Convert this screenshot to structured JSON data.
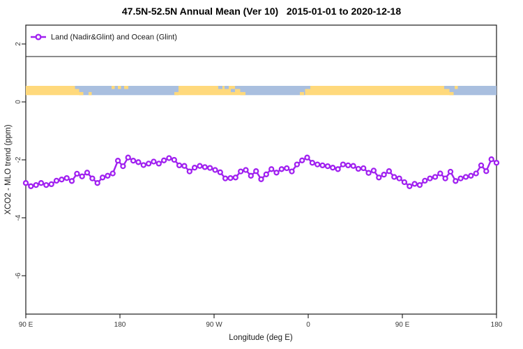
{
  "title": "47.5N-52.5N Annual Mean (Ver 10)   2015-01-01 to 2020-12-18",
  "legend": {
    "label": "Land (Nadir&Glint) and Ocean (Glint)",
    "marker": "open-circle-on-line",
    "position": "top-left-full-width-box"
  },
  "axes": {
    "x_label": "Longitude (deg E)",
    "y_label": "XCO2 - MLO trend (ppm)",
    "x_ticks": [
      "90 E",
      "180",
      "90 W",
      "0",
      "90 E",
      "180"
    ],
    "y_ticks": [
      "2",
      "0",
      "-2",
      "-4",
      "-6"
    ]
  },
  "colors": {
    "line": "#A020F0",
    "marker_fill": "#ffffff",
    "land": "#FFD97C",
    "ocean": "#A9BFDF",
    "frame": "#1a1a1a",
    "background": "#ffffff"
  },
  "map_strip": {
    "note": "land/ocean mask band drawn across the plot at about +0.2 to +0.55 ppm",
    "segments": [
      {
        "from": 90,
        "to": 141,
        "surface": "land"
      },
      {
        "from": 141,
        "to": 236,
        "surface": "ocean"
      },
      {
        "from": 236,
        "to": 295,
        "surface": "land"
      },
      {
        "from": 295,
        "to": 357,
        "surface": "ocean"
      },
      {
        "from": 357,
        "to": 495,
        "surface": "land"
      },
      {
        "from": 495,
        "to": 540,
        "surface": "ocean"
      }
    ],
    "details": [
      {
        "from": 137,
        "to": 141,
        "edge": "top",
        "surface": "ocean"
      },
      {
        "from": 141,
        "to": 145,
        "edge": "bottom",
        "surface": "land"
      },
      {
        "from": 150,
        "to": 153,
        "edge": "bottom",
        "surface": "land"
      },
      {
        "from": 172,
        "to": 175,
        "edge": "top",
        "surface": "land"
      },
      {
        "from": 178,
        "to": 181,
        "edge": "top",
        "surface": "land"
      },
      {
        "from": 184,
        "to": 188,
        "edge": "top",
        "surface": "land"
      },
      {
        "from": 231,
        "to": 236,
        "edge": "top",
        "surface": "ocean"
      },
      {
        "from": 232,
        "to": 236,
        "edge": "bottom",
        "surface": "land"
      },
      {
        "from": 274,
        "to": 278,
        "edge": "top",
        "surface": "ocean"
      },
      {
        "from": 280,
        "to": 284,
        "edge": "top",
        "surface": "ocean"
      },
      {
        "from": 286,
        "to": 290,
        "edge": "mid",
        "surface": "ocean"
      },
      {
        "from": 290,
        "to": 295,
        "edge": "top",
        "surface": "ocean"
      },
      {
        "from": 295,
        "to": 300,
        "edge": "bottom",
        "surface": "land"
      },
      {
        "from": 352,
        "to": 362,
        "edge": "top",
        "surface": "ocean"
      },
      {
        "from": 352,
        "to": 356,
        "edge": "bottom",
        "surface": "land"
      },
      {
        "from": 490,
        "to": 495,
        "edge": "top",
        "surface": "ocean"
      },
      {
        "from": 495,
        "to": 499,
        "edge": "bottom",
        "surface": "land"
      },
      {
        "from": 500,
        "to": 503,
        "edge": "top",
        "surface": "land"
      }
    ]
  },
  "chart_data": {
    "type": "line",
    "title": "47.5N-52.5N Annual Mean (Ver 10)   2015-01-01 to 2020-12-18",
    "xlabel": "Longitude (deg E)",
    "ylabel": "XCO2 - MLO trend (ppm)",
    "x_axis": {
      "start_deg_east": 90,
      "end_deg_east_wrapped": 540,
      "tick_positions_deg": [
        90,
        180,
        270,
        360,
        450,
        540
      ],
      "tick_labels": [
        "90 E",
        "180",
        "90 W",
        "0",
        "90 E",
        "180"
      ]
    },
    "ylim": [
      -7.3,
      2.7
    ],
    "y_tick_values": [
      2,
      0,
      -2,
      -4,
      -6
    ],
    "grid": false,
    "legend_position": "top-left",
    "series": [
      {
        "name": "Land (Nadir&Glint) and Ocean (Glint)",
        "color": "#A020F0",
        "marker": "open-circle",
        "n_points": 93,
        "x_spacing_deg": 4.891,
        "values": [
          -2.8,
          -2.91,
          -2.87,
          -2.8,
          -2.87,
          -2.84,
          -2.72,
          -2.68,
          -2.63,
          -2.73,
          -2.48,
          -2.57,
          -2.44,
          -2.64,
          -2.8,
          -2.61,
          -2.55,
          -2.47,
          -2.03,
          -2.22,
          -1.92,
          -2.03,
          -2.08,
          -2.18,
          -2.13,
          -2.06,
          -2.13,
          -2.02,
          -1.94,
          -2.0,
          -2.19,
          -2.21,
          -2.4,
          -2.27,
          -2.21,
          -2.25,
          -2.28,
          -2.35,
          -2.43,
          -2.64,
          -2.63,
          -2.61,
          -2.4,
          -2.35,
          -2.55,
          -2.39,
          -2.67,
          -2.5,
          -2.32,
          -2.44,
          -2.32,
          -2.29,
          -2.4,
          -2.16,
          -2.02,
          -1.92,
          -2.1,
          -2.16,
          -2.19,
          -2.22,
          -2.27,
          -2.32,
          -2.16,
          -2.19,
          -2.21,
          -2.31,
          -2.29,
          -2.45,
          -2.37,
          -2.61,
          -2.51,
          -2.39,
          -2.59,
          -2.64,
          -2.77,
          -2.91,
          -2.83,
          -2.87,
          -2.72,
          -2.64,
          -2.59,
          -2.47,
          -2.64,
          -2.41,
          -2.73,
          -2.64,
          -2.59,
          -2.55,
          -2.47,
          -2.19,
          -2.39,
          -1.98,
          -2.1
        ]
      }
    ]
  }
}
